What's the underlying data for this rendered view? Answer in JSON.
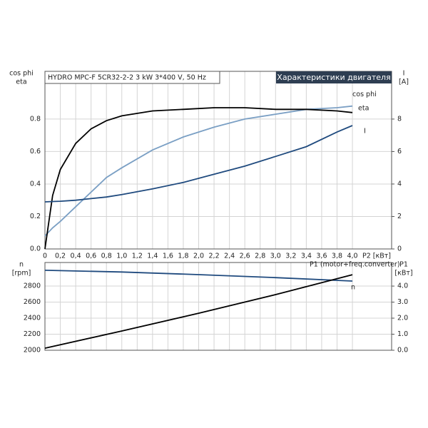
{
  "chart_data": [
    {
      "type": "line",
      "title": "HYDRO MPC-F 5CR32-2-2  3 kW  3*400 V, 50 Hz",
      "subtitle": "Характеристики двигателя",
      "ylabel": [
        "cos phi",
        "eta"
      ],
      "y2label": [
        "I",
        "[A]"
      ],
      "xlabel": "P2 [кВт]",
      "x": [
        0,
        0.1,
        0.2,
        0.4,
        0.6,
        0.8,
        1.0,
        1.4,
        1.8,
        2.2,
        2.6,
        3.0,
        3.4,
        3.8,
        4.0
      ],
      "series": [
        {
          "name": "cos phi",
          "color": "#7a9fc4",
          "values": [
            0.08,
            0.13,
            0.17,
            0.26,
            0.35,
            0.44,
            0.5,
            0.61,
            0.69,
            0.75,
            0.8,
            0.83,
            0.86,
            0.87,
            0.88
          ]
        },
        {
          "name": "eta",
          "color": "#000000",
          "values": [
            0,
            0.33,
            0.49,
            0.65,
            0.74,
            0.79,
            0.82,
            0.85,
            0.86,
            0.87,
            0.87,
            0.86,
            0.86,
            0.85,
            0.84
          ]
        },
        {
          "name": "I",
          "color": "#1f4a7e",
          "axis": "y2",
          "values": [
            2.9,
            2.92,
            2.94,
            3.0,
            3.1,
            3.2,
            3.35,
            3.7,
            4.1,
            4.6,
            5.1,
            5.7,
            6.3,
            7.2,
            7.6
          ]
        }
      ],
      "xlim": [
        0,
        4.51
      ],
      "xticks": [
        0,
        {
          "value": 0.2,
          "label": "0,2"
        },
        {
          "value": 0.4,
          "label": "0,4"
        },
        {
          "value": 0.6,
          "label": "0,6"
        },
        {
          "value": 0.8,
          "label": "0,8"
        },
        {
          "value": 1.0,
          "label": "1,0"
        },
        {
          "value": 1.2,
          "label": "1,2"
        },
        {
          "value": 1.4,
          "label": "1,4"
        },
        {
          "value": 1.6,
          "label": "1,6"
        },
        {
          "value": 1.8,
          "label": "1,8"
        },
        {
          "value": 2.0,
          "label": "2,0"
        },
        {
          "value": 2.2,
          "label": "2,2"
        },
        {
          "value": 2.4,
          "label": "2,4"
        },
        {
          "value": 2.6,
          "label": "2,6"
        },
        {
          "value": 2.8,
          "label": "2,8"
        },
        {
          "value": 3.0,
          "label": "3,0"
        },
        {
          "value": 3.2,
          "label": "3,2"
        },
        {
          "value": 3.4,
          "label": "3,4"
        },
        {
          "value": 3.6,
          "label": "3,6"
        },
        {
          "value": 3.8,
          "label": "3,8"
        },
        {
          "value": 4.0,
          "label": "4,0"
        }
      ],
      "ylim": [
        0,
        1.094
      ],
      "yticks": [
        {
          "value": 0,
          "label": "0.0"
        },
        0.2,
        0.4,
        0.6,
        0.8
      ],
      "y2lim": [
        0,
        10.94
      ],
      "y2ticks": [
        0,
        2,
        4,
        6,
        8
      ],
      "grid": true
    },
    {
      "type": "line",
      "ylabel": [
        "n",
        "[rpm]"
      ],
      "y2label": [
        "P1",
        "[кВт]"
      ],
      "x": [
        0,
        1,
        2,
        3,
        4
      ],
      "series": [
        {
          "name": "n",
          "color": "#1f4a7e",
          "values": [
            2996,
            2975,
            2942,
            2905,
            2862
          ]
        },
        {
          "name": "P1 (motor+freq.converter)",
          "color": "#000000",
          "axis": "y2",
          "values": [
            0.13,
            1.2,
            2.31,
            3.47,
            4.71
          ]
        }
      ],
      "xlim": [
        0,
        4.51
      ],
      "ylim": [
        2000,
        3093
      ],
      "yticks": [
        2000,
        2200,
        2400,
        2600,
        2800
      ],
      "y2lim": [
        0,
        5.47
      ],
      "y2ticks": [
        {
          "value": 0,
          "label": "0.0"
        },
        {
          "value": 1,
          "label": "1.0"
        },
        {
          "value": 2,
          "label": "2.0"
        },
        {
          "value": 3,
          "label": "3.0"
        },
        {
          "value": 4,
          "label": "4.0"
        }
      ],
      "grid": true
    }
  ]
}
